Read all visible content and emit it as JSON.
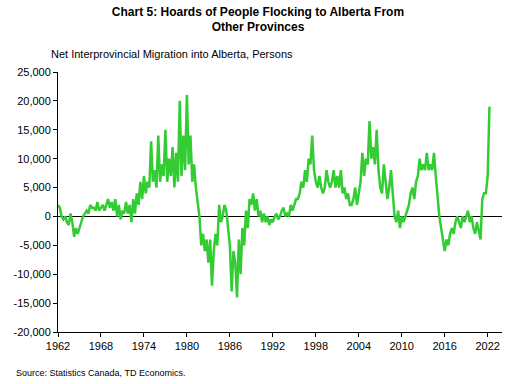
{
  "chart_data": {
    "type": "line",
    "title": "Chart 5: Hoards of People Flocking to Alberta From\nOther Provinces",
    "subtitle": "Net Interprovincial Migration into Alberta, Persons",
    "source": "Source: Statistics Canada, TD Economics.",
    "color": "#33cc33",
    "grid": false,
    "xlim": [
      1962,
      2024
    ],
    "xticks": [
      1962,
      1968,
      1974,
      1980,
      1986,
      1992,
      1998,
      2004,
      2010,
      2016,
      2022
    ],
    "ylim": [
      -20000,
      25000
    ],
    "yticks": [
      {
        "value": -20000,
        "label": "-20,000"
      },
      {
        "value": -15000,
        "label": "-15,000"
      },
      {
        "value": -10000,
        "label": "-10,000"
      },
      {
        "value": -5000,
        "label": "-5,000"
      },
      0,
      {
        "value": 5000,
        "label": "5,000"
      },
      {
        "value": 10000,
        "label": "10,000"
      },
      {
        "value": 15000,
        "label": "15,000"
      },
      {
        "value": 20000,
        "label": "20,000"
      },
      {
        "value": 25000,
        "label": "25,000"
      }
    ],
    "x": [
      1962,
      1962.25,
      1962.5,
      1962.75,
      1963,
      1963.25,
      1963.5,
      1963.75,
      1964,
      1964.25,
      1964.5,
      1964.75,
      1965,
      1965.25,
      1965.5,
      1965.75,
      1966,
      1966.25,
      1966.5,
      1966.75,
      1967,
      1967.25,
      1967.5,
      1967.75,
      1968,
      1968.25,
      1968.5,
      1968.75,
      1969,
      1969.25,
      1969.5,
      1969.75,
      1970,
      1970.25,
      1970.5,
      1970.75,
      1971,
      1971.25,
      1971.5,
      1971.75,
      1972,
      1972.25,
      1972.5,
      1972.75,
      1973,
      1973.25,
      1973.5,
      1973.75,
      1974,
      1974.25,
      1974.5,
      1974.75,
      1975,
      1975.25,
      1975.5,
      1975.75,
      1976,
      1976.25,
      1976.5,
      1976.75,
      1977,
      1977.25,
      1977.5,
      1977.75,
      1978,
      1978.25,
      1978.5,
      1978.75,
      1979,
      1979.25,
      1979.5,
      1979.75,
      1980,
      1980.25,
      1980.5,
      1980.75,
      1981,
      1981.25,
      1981.5,
      1981.75,
      1982,
      1982.25,
      1982.5,
      1982.75,
      1983,
      1983.25,
      1983.5,
      1983.75,
      1984,
      1984.25,
      1984.5,
      1984.75,
      1985,
      1985.25,
      1985.5,
      1985.75,
      1986,
      1986.25,
      1986.5,
      1986.75,
      1987,
      1987.25,
      1987.5,
      1987.75,
      1988,
      1988.25,
      1988.5,
      1988.75,
      1989,
      1989.25,
      1989.5,
      1989.75,
      1990,
      1990.25,
      1990.5,
      1990.75,
      1991,
      1991.25,
      1991.5,
      1991.75,
      1992,
      1992.25,
      1992.5,
      1992.75,
      1993,
      1993.25,
      1993.5,
      1993.75,
      1994,
      1994.25,
      1994.5,
      1994.75,
      1995,
      1995.25,
      1995.5,
      1995.75,
      1996,
      1996.25,
      1996.5,
      1996.75,
      1997,
      1997.25,
      1997.5,
      1997.75,
      1998,
      1998.25,
      1998.5,
      1998.75,
      1999,
      1999.25,
      1999.5,
      1999.75,
      2000,
      2000.25,
      2000.5,
      2000.75,
      2001,
      2001.25,
      2001.5,
      2001.75,
      2002,
      2002.25,
      2002.5,
      2002.75,
      2003,
      2003.25,
      2003.5,
      2003.75,
      2004,
      2004.25,
      2004.5,
      2004.75,
      2005,
      2005.25,
      2005.5,
      2005.75,
      2006,
      2006.25,
      2006.5,
      2006.75,
      2007,
      2007.25,
      2007.5,
      2007.75,
      2008,
      2008.25,
      2008.5,
      2008.75,
      2009,
      2009.25,
      2009.5,
      2009.75,
      2010,
      2010.25,
      2010.5,
      2010.75,
      2011,
      2011.25,
      2011.5,
      2011.75,
      2012,
      2012.25,
      2012.5,
      2012.75,
      2013,
      2013.25,
      2013.5,
      2013.75,
      2014,
      2014.25,
      2014.5,
      2014.75,
      2015,
      2015.25,
      2015.5,
      2015.75,
      2016,
      2016.25,
      2016.5,
      2016.75,
      2017,
      2017.25,
      2017.5,
      2017.75,
      2018,
      2018.25,
      2018.5,
      2018.75,
      2019,
      2019.25,
      2019.5,
      2019.75,
      2020,
      2020.25,
      2020.5,
      2020.75,
      2021,
      2021.25,
      2021.5,
      2021.75,
      2022,
      2022.25
    ],
    "values": [
      2000,
      1500,
      0,
      -500,
      0,
      -1000,
      -1500,
      500,
      -1000,
      -3500,
      -2000,
      -3000,
      -2000,
      -1000,
      0,
      500,
      1000,
      500,
      2000,
      1500,
      1500,
      1000,
      2500,
      1000,
      1500,
      2000,
      1000,
      2000,
      3000,
      1500,
      2500,
      1000,
      3000,
      0,
      2000,
      -500,
      1000,
      500,
      2500,
      500,
      2000,
      -1000,
      3000,
      500,
      4000,
      2000,
      6000,
      3000,
      7000,
      4000,
      6000,
      5000,
      13000,
      6000,
      8000,
      5000,
      14000,
      6000,
      9000,
      7000,
      15000,
      6000,
      10000,
      7000,
      12000,
      5000,
      11000,
      6000,
      20000,
      7000,
      14000,
      8000,
      21000,
      9000,
      14000,
      6000,
      9000,
      5000,
      2000,
      0,
      -5000,
      -3000,
      -6000,
      -4000,
      -8000,
      -4000,
      -12000,
      -6000,
      -3000,
      -5000,
      2000,
      -1000,
      0,
      2000,
      1000,
      -2000,
      -5000,
      -13000,
      -6000,
      -8000,
      -14000,
      -4000,
      -10000,
      -2000,
      -5000,
      1000,
      -2000,
      3000,
      2000,
      4000,
      1000,
      3000,
      0,
      1000,
      -1000,
      500,
      -1000,
      0,
      -1500,
      -500,
      -1000,
      0,
      500,
      -500,
      0,
      1000,
      1500,
      0,
      500,
      0,
      2000,
      1000,
      2000,
      3000,
      3000,
      4000,
      6000,
      5000,
      8000,
      6000,
      10000,
      9000,
      14000,
      8000,
      6000,
      5000,
      7000,
      5000,
      4000,
      5000,
      8000,
      6000,
      5000,
      6000,
      8000,
      5000,
      7000,
      5000,
      8000,
      4000,
      5000,
      3000,
      4000,
      2000,
      2000,
      3000,
      5000,
      2000,
      4000,
      6000,
      11000,
      7000,
      10000,
      9000,
      16500,
      10000,
      12000,
      9000,
      15000,
      8000,
      5000,
      4000,
      9000,
      6000,
      3000,
      5000,
      8000,
      4000,
      0,
      -1000,
      1000,
      -2000,
      0,
      -1000,
      0,
      1000,
      2000,
      4000,
      5000,
      3000,
      6000,
      7000,
      10000,
      8000,
      9000,
      8000,
      11000,
      8000,
      9000,
      8000,
      11000,
      7000,
      3000,
      0,
      -2000,
      -4000,
      -6000,
      -4000,
      -5000,
      -3000,
      -2000,
      -3000,
      -1000,
      0,
      -1000,
      -2000,
      0,
      -1000,
      0,
      1000,
      -1000,
      0,
      -2000,
      -3000,
      -1000,
      -2500,
      -4000,
      3000,
      4000,
      4000,
      7000,
      19000
    ]
  }
}
